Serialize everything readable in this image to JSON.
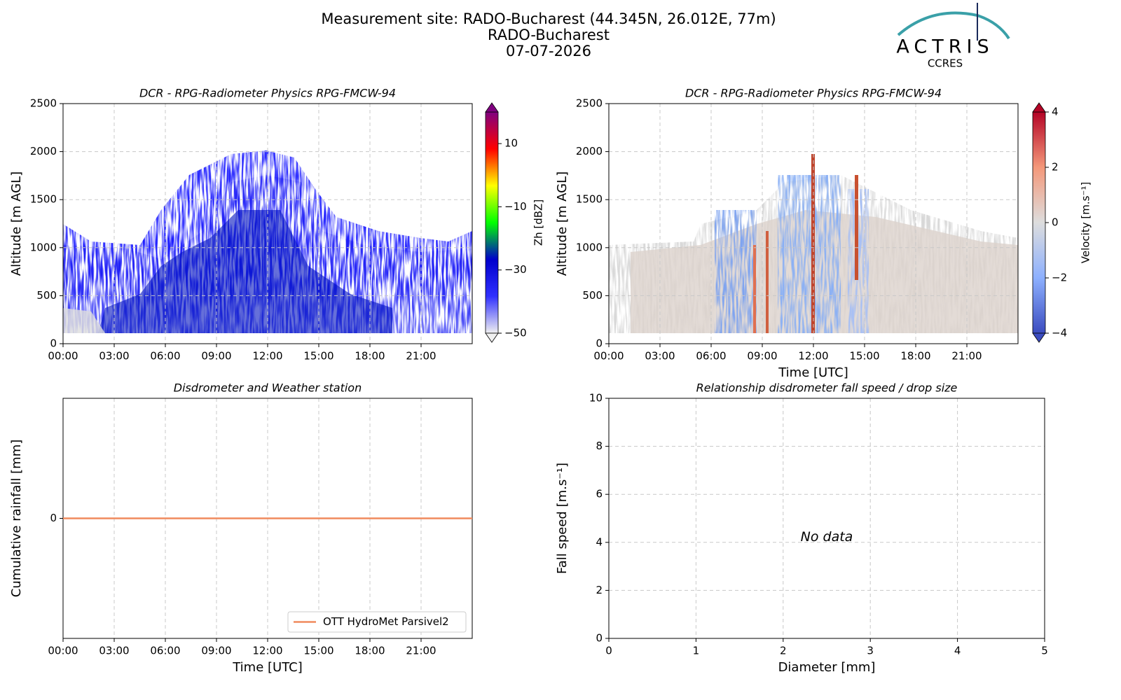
{
  "header": {
    "lines": [
      "Measurement site: RADO-Bucharest (44.345N, 26.012E, 77m)",
      "RADO-Bucharest",
      "07-07-2026"
    ],
    "logo": "ACTRIS",
    "logo_sub": "CCRES"
  },
  "chart_data": [
    {
      "type": "heatmap",
      "title": "DCR - RPG-Radiometer Physics RPG-FMCW-94",
      "ylabel": "Altitude [m AGL]",
      "xlim": [
        0,
        24
      ],
      "xticks": [
        {
          "value": 0,
          "label": "00:00"
        },
        {
          "value": 3,
          "label": "03:00"
        },
        {
          "value": 6,
          "label": "06:00"
        },
        {
          "value": 9,
          "label": "09:00"
        },
        {
          "value": 12,
          "label": "12:00"
        },
        {
          "value": 15,
          "label": "15:00"
        },
        {
          "value": 18,
          "label": "18:00"
        },
        {
          "value": 21,
          "label": "21:00"
        }
      ],
      "ylim": [
        0,
        2500
      ],
      "yticks": [
        0,
        500,
        1000,
        1500,
        2000,
        2500
      ],
      "grid": true,
      "colorbar": {
        "label": "Zh [dBZ]",
        "clim": [
          -50,
          20
        ],
        "ticks": [
          {
            "value": -50,
            "label": "−50"
          },
          {
            "value": -30,
            "label": "−30"
          },
          {
            "value": -10,
            "label": "−10"
          },
          10
        ],
        "colors": [
          "#f0f0f0",
          "#3030ff",
          "#0000cc",
          "#00ff00",
          "#ffff00",
          "#ff0000",
          "#800080"
        ]
      }
    },
    {
      "type": "heatmap",
      "title": "DCR - RPG-Radiometer Physics RPG-FMCW-94",
      "ylabel": "Altitude [m AGL]",
      "xlabel": "Time [UTC]",
      "xlim": [
        0,
        24
      ],
      "xticks": [
        {
          "value": 0,
          "label": "00:00"
        },
        {
          "value": 3,
          "label": "03:00"
        },
        {
          "value": 6,
          "label": "06:00"
        },
        {
          "value": 9,
          "label": "09:00"
        },
        {
          "value": 12,
          "label": "12:00"
        },
        {
          "value": 15,
          "label": "15:00"
        },
        {
          "value": 18,
          "label": "18:00"
        },
        {
          "value": 21,
          "label": "21:00"
        }
      ],
      "ylim": [
        0,
        2500
      ],
      "yticks": [
        0,
        500,
        1000,
        1500,
        2000,
        2500
      ],
      "grid": true,
      "colorbar": {
        "label": "Velocity [m.s⁻¹]",
        "clim": [
          -4,
          4
        ],
        "ticks": [
          {
            "value": -4,
            "label": "−4"
          },
          {
            "value": -2,
            "label": "−2"
          },
          0,
          2,
          4
        ],
        "colors": [
          "#3b4cc0",
          "#8db0fe",
          "#dddddd",
          "#f4987a",
          "#b40426"
        ]
      }
    },
    {
      "type": "line",
      "title": "Disdrometer and Weather station",
      "ylabel": "Cumulative rainfall [mm]",
      "xlabel": "Time [UTC]",
      "xlim": [
        0,
        24
      ],
      "xticks": [
        {
          "value": 0,
          "label": "00:00"
        },
        {
          "value": 3,
          "label": "03:00"
        },
        {
          "value": 6,
          "label": "06:00"
        },
        {
          "value": 9,
          "label": "09:00"
        },
        {
          "value": 12,
          "label": "12:00"
        },
        {
          "value": 15,
          "label": "15:00"
        },
        {
          "value": 18,
          "label": "18:00"
        },
        {
          "value": 21,
          "label": "21:00"
        }
      ],
      "ylim": [
        -1,
        1
      ],
      "yticks": [
        0
      ],
      "grid": true,
      "legend": "lower-right",
      "series": [
        {
          "name": "OTT HydroMet Parsivel2",
          "color": "#f08a5d",
          "x": [
            0,
            24
          ],
          "values": [
            0,
            0
          ]
        }
      ]
    },
    {
      "type": "scatter",
      "title": "Relationship disdrometer fall speed / drop size",
      "ylabel": "Fall speed [m.s⁻¹]",
      "xlabel": "Diameter [mm]",
      "xlim": [
        0,
        5
      ],
      "xticks": [
        0,
        1,
        2,
        3,
        4,
        5
      ],
      "ylim": [
        0,
        10
      ],
      "yticks": [
        0,
        2,
        4,
        6,
        8,
        10
      ],
      "grid": true,
      "annotation": "No data"
    }
  ]
}
